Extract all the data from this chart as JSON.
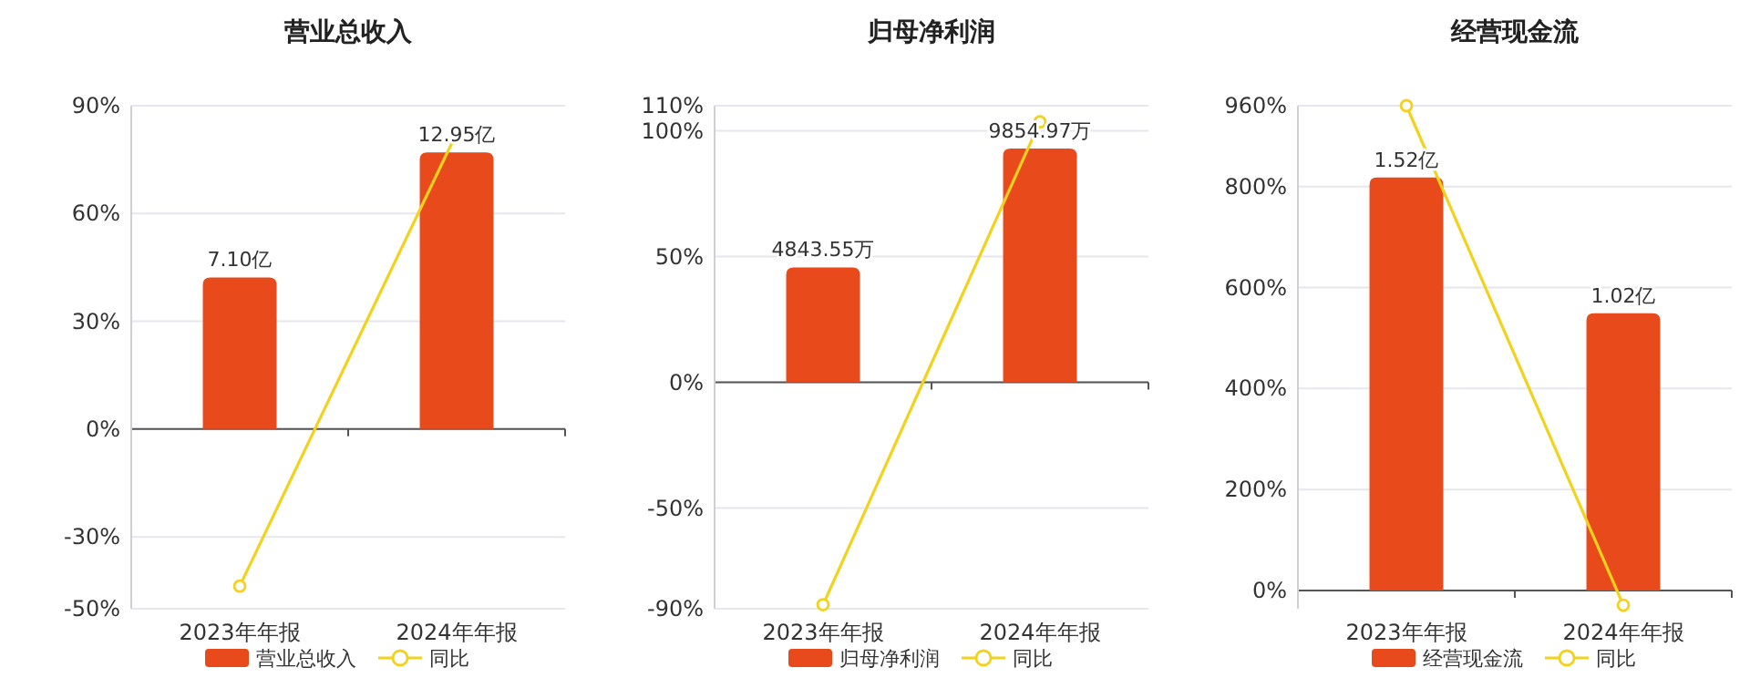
{
  "chart_data": [
    {
      "type": "bar",
      "title": "营业总收入",
      "categories": [
        "2023年年报",
        "2024年年报"
      ],
      "series": [
        {
          "name": "营业总收入",
          "color": "#e84a1b",
          "values": [
            7.1,
            12.95
          ],
          "value_labels": [
            "7.10亿",
            "12.95亿"
          ],
          "axis": "y2"
        },
        {
          "name": "同比",
          "type": "line",
          "color": "#f2d21c",
          "values": [
            -43.7,
            82.4
          ],
          "marker": "circle",
          "line_style": "solid"
        }
      ],
      "ylim": [
        -50,
        90
      ],
      "yticks": [
        {
          "value": -50,
          "label": "-50%"
        },
        {
          "value": -30,
          "label": "-30%"
        },
        {
          "value": 0,
          "label": "0%"
        },
        {
          "value": 30,
          "label": "30%"
        },
        {
          "value": 60,
          "label": "60%"
        },
        {
          "value": 90,
          "label": "90%"
        }
      ],
      "y2lim": [
        -8.41,
        15.14
      ],
      "grid": "y",
      "legend": "bottom"
    },
    {
      "type": "bar",
      "title": "归母净利润",
      "categories": [
        "2023年年报",
        "2024年年报"
      ],
      "series": [
        {
          "name": "归母净利润",
          "color": "#e84a1b",
          "values": [
            4843.55,
            9854.97
          ],
          "value_labels": [
            "4843.55万",
            "9854.97万"
          ],
          "axis": "y2"
        },
        {
          "name": "同比",
          "type": "line",
          "color": "#f2d21c",
          "values": [
            -88.4,
            103.6
          ],
          "marker": "circle",
          "line_style": "solid"
        }
      ],
      "ylim": [
        -90,
        110
      ],
      "yticks": [
        {
          "value": -90,
          "label": "-90%"
        },
        {
          "value": -50,
          "label": "-50%"
        },
        {
          "value": 0,
          "label": "0%"
        },
        {
          "value": 50,
          "label": "50%"
        },
        {
          "value": 100,
          "label": "100%"
        },
        {
          "value": 110,
          "label": "110%"
        }
      ],
      "y2lim": [
        -9540,
        11660
      ],
      "grid": "y",
      "legend": "bottom"
    },
    {
      "type": "bar",
      "title": "经营现金流",
      "categories": [
        "2023年年报",
        "2024年年报"
      ],
      "series": [
        {
          "name": "经营现金流",
          "color": "#e84a1b",
          "values": [
            1.52,
            1.02
          ],
          "value_labels": [
            "1.52亿",
            "1.02亿"
          ],
          "axis": "y2"
        },
        {
          "name": "同比",
          "type": "line",
          "color": "#f2d21c",
          "values": [
            960,
            -29
          ],
          "marker": "circle",
          "line_style": "solid"
        }
      ],
      "ylim": [
        -36,
        960
      ],
      "yticks": [
        {
          "value": 0,
          "label": "0%"
        },
        {
          "value": 200,
          "label": "200%"
        },
        {
          "value": 400,
          "label": "400%"
        },
        {
          "value": 600,
          "label": "600%"
        },
        {
          "value": 800,
          "label": "800%"
        },
        {
          "value": 960,
          "label": "960%"
        }
      ],
      "y2lim": [
        -0.0669,
        1.784
      ],
      "grid": "y",
      "legend": "bottom"
    }
  ]
}
